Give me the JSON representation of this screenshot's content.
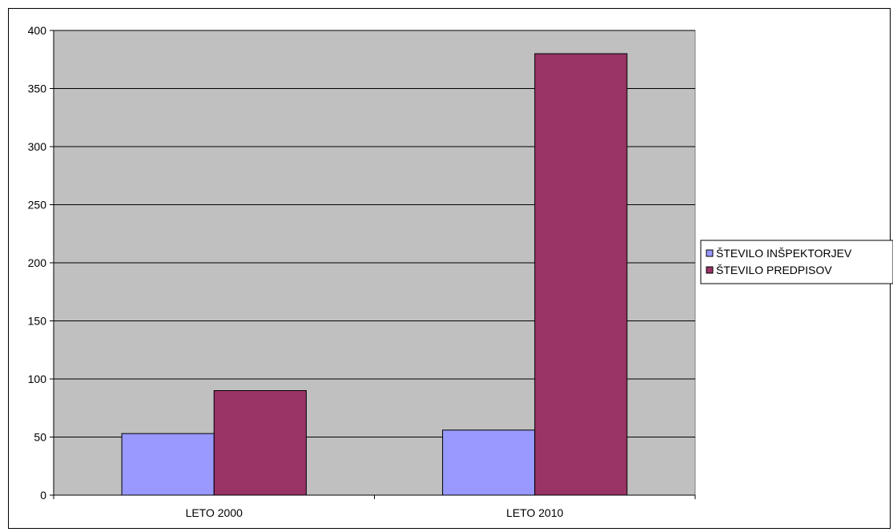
{
  "chart_data": {
    "type": "bar",
    "categories": [
      "LETO 2000",
      "LETO 2010"
    ],
    "series": [
      {
        "name": "ŠTEVILO INŠPEKTORJEV",
        "values": [
          53,
          56
        ],
        "color": "#9999ff"
      },
      {
        "name": "ŠTEVILO PREDPISOV",
        "values": [
          90,
          380
        ],
        "color": "#993366"
      }
    ],
    "ylim": [
      0,
      400
    ],
    "yticks": [
      0,
      50,
      100,
      150,
      200,
      250,
      300,
      350,
      400
    ],
    "grid": true,
    "plot_background": "#c0c0c0",
    "legend_placement": "right",
    "title": "",
    "xlabel": "",
    "ylabel": ""
  }
}
